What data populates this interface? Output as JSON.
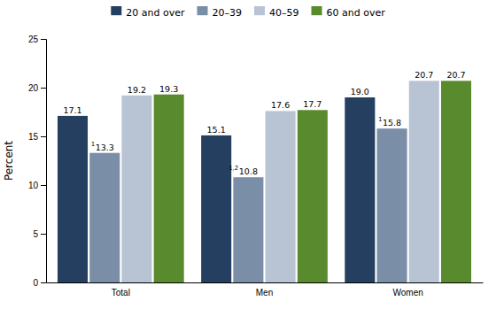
{
  "chart_data": {
    "type": "bar",
    "categories": [
      "Total",
      "Men",
      "Women"
    ],
    "series": [
      {
        "name": "20 and over",
        "color": "#243f60",
        "values": [
          17.1,
          15.1,
          19.0
        ],
        "value_labels": [
          "17.1",
          "15.1",
          "19.0"
        ]
      },
      {
        "name": "20–39",
        "color": "#7b8ea8",
        "values": [
          13.3,
          10.8,
          15.8
        ],
        "value_labels": [
          "13.3",
          "10.8",
          "15.8"
        ]
      },
      {
        "name": "40–59",
        "color": "#b8c4d4",
        "values": [
          19.2,
          17.6,
          20.7
        ],
        "value_labels": [
          "19.2",
          "17.6",
          "20.7"
        ]
      },
      {
        "name": "60 and over",
        "color": "#5a8a2e",
        "values": [
          19.3,
          17.7,
          20.7
        ],
        "value_labels": [
          "19.3",
          "17.7",
          "20.7"
        ]
      }
    ],
    "annotations": [
      {
        "text": "1",
        "series": "20–39",
        "category": "Total"
      },
      {
        "text": "1,2",
        "series": "20–39",
        "category": "Men"
      },
      {
        "text": "1",
        "series": "20–39",
        "category": "Women"
      }
    ],
    "ylabel": "Percent",
    "ylim": [
      0,
      25
    ],
    "yticks": [
      0,
      5,
      10,
      15,
      20,
      25
    ],
    "data_labels": true,
    "grid": false,
    "legend": "top"
  }
}
